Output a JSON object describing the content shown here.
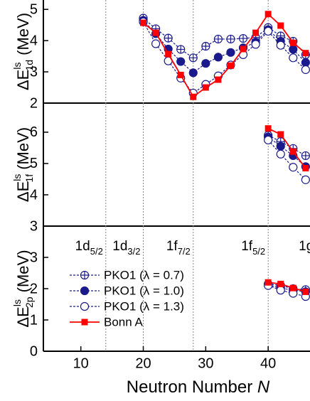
{
  "chart_data": [
    {
      "type": "line",
      "panel": "top",
      "ylabel": {
        "main": "ΔE",
        "sup": "ls",
        "sub": "1d",
        "unit": " (MeV)"
      },
      "xlim": [
        4,
        46.7
      ],
      "ylim": [
        2,
        5.3
      ],
      "yticks": [
        2,
        3,
        4,
        5
      ],
      "vlines": [
        14,
        20,
        28,
        40
      ],
      "x": [
        20,
        22,
        24,
        26,
        28,
        30,
        32,
        34,
        36,
        38,
        40,
        42,
        44,
        46
      ],
      "series": [
        {
          "name": "PKO1 (λ = 0.7)",
          "color": "#1a1a8c",
          "marker": "circle-cross",
          "dashed": true,
          "values": [
            4.72,
            4.38,
            4.08,
            3.72,
            3.45,
            3.82,
            4.05,
            4.05,
            4.07,
            4.1,
            4.42,
            4.15,
            3.98,
            3.55
          ]
        },
        {
          "name": "PKO1 (λ = 1.0)",
          "color": "#1a1a8c",
          "marker": "circle-filled",
          "dashed": true,
          "values": [
            4.65,
            4.22,
            3.73,
            3.33,
            2.97,
            3.27,
            3.47,
            3.62,
            3.77,
            3.95,
            4.35,
            3.98,
            3.72,
            3.3
          ]
        },
        {
          "name": "PKO1 (λ = 1.3)",
          "color": "#1a1a8c",
          "marker": "circle-open",
          "dashed": true,
          "values": [
            4.6,
            3.9,
            3.35,
            2.8,
            2.32,
            2.6,
            2.87,
            3.22,
            3.55,
            3.88,
            4.3,
            3.85,
            3.45,
            3.07
          ]
        },
        {
          "name": "Bonn A",
          "color": "#ff0000",
          "marker": "square",
          "dashed": false,
          "values": [
            4.57,
            4.25,
            3.57,
            2.9,
            2.2,
            2.5,
            2.75,
            3.2,
            3.73,
            4.25,
            4.85,
            4.48,
            3.93,
            3.6
          ]
        }
      ]
    },
    {
      "type": "line",
      "panel": "middle",
      "ylabel": {
        "main": "ΔE",
        "sup": "ls",
        "sub": "1f",
        "unit": " (MeV)"
      },
      "xlim": [
        4,
        46.7
      ],
      "ylim": [
        3,
        6.93
      ],
      "yticks": [
        3,
        4,
        5,
        6
      ],
      "vlines": [
        14,
        20,
        28,
        40
      ],
      "x": [
        40,
        42,
        44,
        46
      ],
      "series": [
        {
          "name": "PKO1 (λ = 0.7)",
          "color": "#1a1a8c",
          "marker": "circle-cross",
          "dashed": true,
          "values": [
            5.9,
            5.7,
            5.48,
            5.25
          ]
        },
        {
          "name": "PKO1 (λ = 1.0)",
          "color": "#1a1a8c",
          "marker": "circle-filled",
          "dashed": true,
          "values": [
            5.85,
            5.55,
            5.25,
            4.9
          ]
        },
        {
          "name": "PKO1 (λ = 1.3)",
          "color": "#1a1a8c",
          "marker": "circle-open",
          "dashed": true,
          "values": [
            5.75,
            5.3,
            4.88,
            4.48
          ]
        },
        {
          "name": "Bonn A",
          "color": "#ff0000",
          "marker": "square",
          "dashed": false,
          "values": [
            6.12,
            5.93,
            5.38,
            4.85
          ]
        }
      ]
    },
    {
      "type": "line",
      "panel": "bottom",
      "ylabel": {
        "main": "ΔE",
        "sup": "ls",
        "sub": "2p",
        "unit": " (MeV)"
      },
      "xlabel": {
        "main": "Neutron Number ",
        "italic": "N"
      },
      "xlim": [
        4,
        46.7
      ],
      "xticks": [
        10,
        20,
        30,
        40
      ],
      "ylim": [
        0,
        4
      ],
      "yticks": [
        0,
        1,
        2,
        3
      ],
      "vlines": [
        14,
        20,
        28,
        40
      ],
      "shell_labels": [
        {
          "main": "1d",
          "sub": "5/2"
        },
        {
          "main": "1d",
          "sub": "3/2"
        },
        {
          "main": "1f",
          "sub": "7/2"
        },
        {
          "main": "1f",
          "sub": "5/2"
        },
        {
          "main": "1g"
        }
      ],
      "x": [
        40,
        42,
        44,
        46
      ],
      "series": [
        {
          "name": "PKO1 (λ = 0.7)",
          "color": "#1a1a8c",
          "marker": "circle-cross",
          "dashed": true,
          "values": [
            2.15,
            2.1,
            2.0,
            1.97
          ]
        },
        {
          "name": "PKO1 (λ = 1.0)",
          "color": "#1a1a8c",
          "marker": "circle-filled",
          "dashed": true,
          "values": [
            2.12,
            2.02,
            1.95,
            1.9
          ]
        },
        {
          "name": "PKO1 (λ = 1.3)",
          "color": "#1a1a8c",
          "marker": "circle-open",
          "dashed": true,
          "values": [
            2.1,
            1.95,
            1.85,
            1.75
          ]
        },
        {
          "name": "Bonn A",
          "color": "#ff0000",
          "marker": "square",
          "dashed": false,
          "values": [
            2.2,
            2.15,
            2.02,
            1.9
          ]
        }
      ]
    }
  ]
}
